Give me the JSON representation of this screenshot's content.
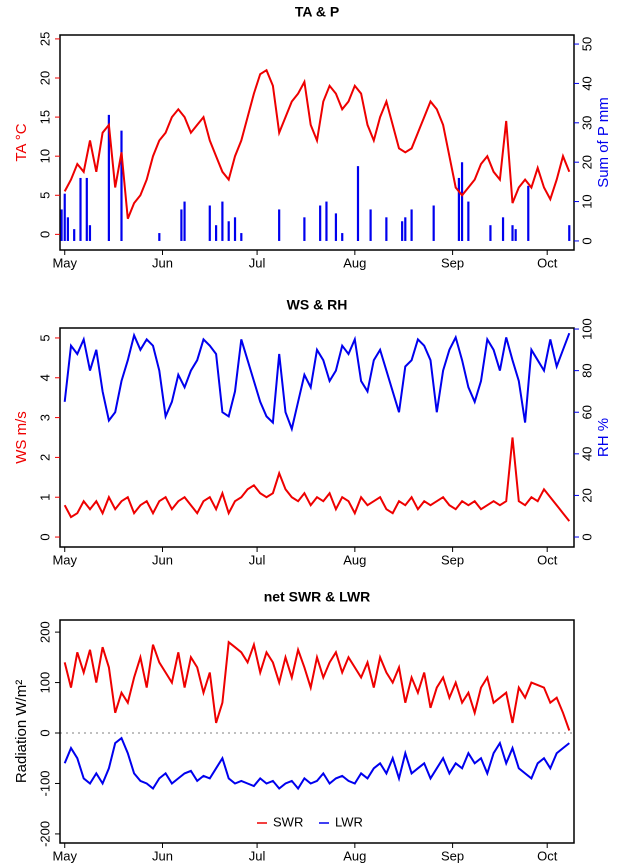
{
  "chart_data": [
    {
      "type": "line",
      "title": "TA & P",
      "ylabel": "TA °C",
      "y2label": "Sum of P mm",
      "x": [
        0,
        2,
        4,
        6,
        8,
        10,
        12,
        14,
        16,
        18,
        20,
        22,
        24,
        26,
        28,
        30,
        32,
        34,
        36,
        38,
        40,
        42,
        44,
        46,
        48,
        50,
        52,
        54,
        56,
        58,
        60,
        62,
        64,
        66,
        68,
        70,
        72,
        74,
        76,
        78,
        80,
        82,
        84,
        86,
        88,
        90,
        92,
        94,
        96,
        98,
        100,
        102,
        104,
        106,
        108,
        110,
        112,
        114,
        116,
        118,
        120,
        122,
        124,
        126,
        128,
        130,
        132,
        134,
        136,
        138,
        140,
        142,
        144,
        146,
        148,
        150,
        152,
        154,
        156,
        158,
        160
      ],
      "xlim": [
        -1.5,
        161.5
      ],
      "xticks": [
        {
          "value": 0,
          "label": "May"
        },
        {
          "value": 31,
          "label": "Jun"
        },
        {
          "value": 61,
          "label": "Jul"
        },
        {
          "value": 92,
          "label": "Aug"
        },
        {
          "value": 123,
          "label": "Sep"
        },
        {
          "value": 153,
          "label": "Oct"
        }
      ],
      "ylim": [
        -2,
        25.5
      ],
      "yticks": [
        0,
        5,
        10,
        15,
        20,
        25
      ],
      "y2lim": [
        -2.3,
        52.3
      ],
      "y2ticks": [
        0,
        10,
        20,
        30,
        40,
        50
      ],
      "series": [
        {
          "name": "P",
          "type": "bar",
          "axis": "y2",
          "color": "#0000ee",
          "x": [
            -1,
            0,
            1,
            3,
            5,
            7,
            8,
            14,
            18,
            30,
            37,
            38,
            46,
            48,
            50,
            52,
            54,
            56,
            68,
            76,
            81,
            83,
            86,
            88,
            93,
            97,
            102,
            107,
            108,
            110,
            117,
            125,
            126,
            128,
            135,
            139,
            142,
            143,
            147,
            160
          ],
          "values": [
            8,
            12,
            6,
            3,
            16,
            16,
            4,
            32,
            28,
            2,
            8,
            10,
            9,
            4,
            10,
            5,
            6,
            2,
            8,
            6,
            9,
            10,
            7,
            2,
            19,
            8,
            6,
            5,
            6,
            8,
            9,
            16,
            20,
            10,
            4,
            6,
            4,
            3,
            14,
            4
          ]
        },
        {
          "name": "TA",
          "type": "line",
          "axis": "y",
          "color": "#ee0000",
          "values": [
            5.5,
            7,
            9,
            8,
            12,
            8,
            13,
            14,
            6,
            10.5,
            2,
            4,
            5,
            7,
            10,
            12,
            13,
            15,
            16,
            15,
            13,
            14,
            15,
            12,
            10,
            8,
            7,
            10,
            12,
            15,
            18,
            20.5,
            21,
            19,
            13,
            15,
            17,
            18,
            19.5,
            14,
            12,
            17,
            19,
            18,
            16,
            17,
            19,
            18,
            14,
            12,
            15,
            17,
            14,
            11,
            10.5,
            11,
            13,
            15,
            17,
            16,
            14,
            10,
            6,
            5,
            6,
            7,
            9,
            10,
            8,
            7,
            14.5,
            4,
            6,
            7,
            6,
            8.5,
            6,
            4.5,
            7,
            10,
            8
          ]
        }
      ]
    },
    {
      "type": "line",
      "title": "WS & RH",
      "ylabel": "WS m/s",
      "y2label": "RH %",
      "x": [
        0,
        2,
        4,
        6,
        8,
        10,
        12,
        14,
        16,
        18,
        20,
        22,
        24,
        26,
        28,
        30,
        32,
        34,
        36,
        38,
        40,
        42,
        44,
        46,
        48,
        50,
        52,
        54,
        56,
        58,
        60,
        62,
        64,
        66,
        68,
        70,
        72,
        74,
        76,
        78,
        80,
        82,
        84,
        86,
        88,
        90,
        92,
        94,
        96,
        98,
        100,
        102,
        104,
        106,
        108,
        110,
        112,
        114,
        116,
        118,
        120,
        122,
        124,
        126,
        128,
        130,
        132,
        134,
        136,
        138,
        140,
        142,
        144,
        146,
        148,
        150,
        152,
        154,
        156,
        158,
        160
      ],
      "xlim": [
        -1.5,
        161.5
      ],
      "xticks": [
        {
          "value": 0,
          "label": "May"
        },
        {
          "value": 31,
          "label": "Jun"
        },
        {
          "value": 61,
          "label": "Jul"
        },
        {
          "value": 92,
          "label": "Aug"
        },
        {
          "value": 123,
          "label": "Sep"
        },
        {
          "value": 153,
          "label": "Oct"
        }
      ],
      "ylim": [
        -0.25,
        5.25
      ],
      "yticks": [
        0,
        1,
        2,
        3,
        4,
        5
      ],
      "y2lim": [
        -4.8,
        100.5
      ],
      "y2ticks": [
        0,
        20,
        40,
        60,
        80,
        100
      ],
      "series": [
        {
          "name": "WS",
          "type": "line",
          "axis": "y",
          "color": "#ee0000",
          "values": [
            0.8,
            0.5,
            0.6,
            0.9,
            0.7,
            0.9,
            0.6,
            1.0,
            0.7,
            0.9,
            1.0,
            0.6,
            0.8,
            0.9,
            0.6,
            0.9,
            1.0,
            0.7,
            0.9,
            1.0,
            0.8,
            0.6,
            0.9,
            1.0,
            0.7,
            1.1,
            0.6,
            0.9,
            1.0,
            1.2,
            1.3,
            1.1,
            1.0,
            1.1,
            1.6,
            1.2,
            1.0,
            0.9,
            1.1,
            0.8,
            1.0,
            0.9,
            1.1,
            0.7,
            1.0,
            0.9,
            0.6,
            1.0,
            0.8,
            0.9,
            1.0,
            0.7,
            0.6,
            0.9,
            0.8,
            1.0,
            0.7,
            0.9,
            0.8,
            0.9,
            1.0,
            0.8,
            0.7,
            0.9,
            0.8,
            0.9,
            0.7,
            0.8,
            0.9,
            0.8,
            0.9,
            2.5,
            0.9,
            0.8,
            1.0,
            0.9,
            1.2,
            1.0,
            0.8,
            0.6,
            0.4
          ]
        },
        {
          "name": "RH",
          "type": "line",
          "axis": "y2",
          "color": "#0000ee",
          "values": [
            65,
            92,
            88,
            95,
            80,
            90,
            70,
            56,
            60,
            75,
            85,
            97,
            90,
            95,
            92,
            80,
            58,
            65,
            78,
            72,
            80,
            85,
            95,
            92,
            88,
            60,
            58,
            70,
            95,
            85,
            75,
            65,
            58,
            55,
            88,
            60,
            52,
            65,
            78,
            72,
            90,
            85,
            75,
            80,
            92,
            88,
            95,
            75,
            70,
            85,
            90,
            80,
            70,
            60,
            82,
            85,
            95,
            92,
            85,
            60,
            80,
            90,
            96,
            85,
            72,
            65,
            75,
            95,
            90,
            80,
            96,
            85,
            75,
            55,
            90,
            85,
            80,
            95,
            82,
            90,
            98
          ]
        }
      ]
    },
    {
      "type": "line",
      "title": "net SWR & LWR",
      "ylabel": "Radiation W/m²",
      "x": [
        0,
        2,
        4,
        6,
        8,
        10,
        12,
        14,
        16,
        18,
        20,
        22,
        24,
        26,
        28,
        30,
        32,
        34,
        36,
        38,
        40,
        42,
        44,
        46,
        48,
        50,
        52,
        54,
        56,
        58,
        60,
        62,
        64,
        66,
        68,
        70,
        72,
        74,
        76,
        78,
        80,
        82,
        84,
        86,
        88,
        90,
        92,
        94,
        96,
        98,
        100,
        102,
        104,
        106,
        108,
        110,
        112,
        114,
        116,
        118,
        120,
        122,
        124,
        126,
        128,
        130,
        132,
        134,
        136,
        138,
        140,
        142,
        144,
        146,
        148,
        150,
        152,
        154,
        156,
        158,
        160
      ],
      "xlim": [
        -1.5,
        161.5
      ],
      "xticks": [
        {
          "value": 0,
          "label": "May"
        },
        {
          "value": 31,
          "label": "Jun"
        },
        {
          "value": 61,
          "label": "Jul"
        },
        {
          "value": 92,
          "label": "Aug"
        },
        {
          "value": 123,
          "label": "Sep"
        },
        {
          "value": 153,
          "label": "Oct"
        }
      ],
      "ylim": [
        -218,
        224
      ],
      "yticks": [
        -200,
        -100,
        0,
        100,
        200
      ],
      "hlines": [
        0
      ],
      "legend": "bottom",
      "series": [
        {
          "name": "SWR",
          "type": "line",
          "axis": "y",
          "color": "#ee0000",
          "values": [
            140,
            90,
            160,
            120,
            165,
            100,
            170,
            130,
            40,
            80,
            60,
            110,
            150,
            90,
            175,
            140,
            120,
            100,
            160,
            90,
            150,
            130,
            80,
            120,
            20,
            60,
            180,
            170,
            160,
            140,
            175,
            120,
            160,
            140,
            100,
            150,
            110,
            165,
            130,
            90,
            150,
            110,
            140,
            160,
            120,
            150,
            130,
            110,
            140,
            90,
            150,
            120,
            100,
            130,
            60,
            110,
            80,
            120,
            50,
            90,
            110,
            70,
            100,
            60,
            80,
            40,
            90,
            110,
            60,
            70,
            80,
            20,
            90,
            70,
            100,
            95,
            90,
            60,
            70,
            40,
            5
          ]
        },
        {
          "name": "LWR",
          "type": "line",
          "axis": "y",
          "color": "#0000ee",
          "values": [
            -60,
            -30,
            -50,
            -90,
            -100,
            -80,
            -100,
            -70,
            -20,
            -10,
            -40,
            -80,
            -95,
            -100,
            -110,
            -90,
            -80,
            -100,
            -90,
            -80,
            -75,
            -95,
            -85,
            -90,
            -70,
            -50,
            -90,
            -100,
            -95,
            -100,
            -105,
            -90,
            -100,
            -95,
            -110,
            -100,
            -95,
            -110,
            -90,
            -100,
            -95,
            -80,
            -100,
            -90,
            -85,
            -95,
            -100,
            -80,
            -90,
            -70,
            -60,
            -80,
            -50,
            -90,
            -40,
            -80,
            -70,
            -60,
            -90,
            -70,
            -50,
            -80,
            -60,
            -70,
            -40,
            -60,
            -50,
            -80,
            -40,
            -20,
            -60,
            -30,
            -70,
            -80,
            -90,
            -60,
            -50,
            -70,
            -40,
            -30,
            -20
          ]
        }
      ]
    }
  ]
}
